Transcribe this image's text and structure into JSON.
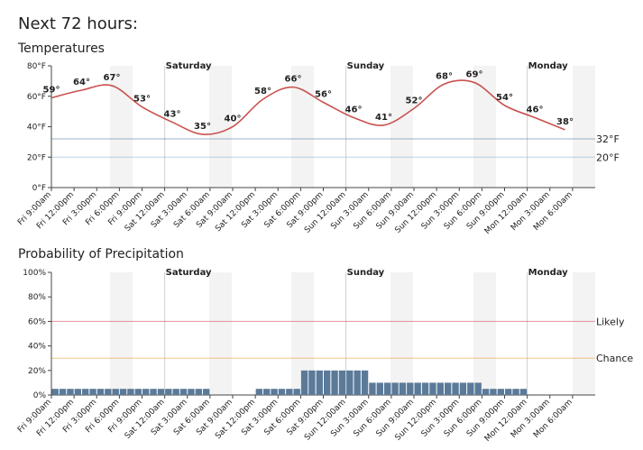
{
  "header": {
    "title": "Next 72 hours:"
  },
  "day_markers": [
    {
      "x": 15,
      "label": "Saturday"
    },
    {
      "x": 39,
      "label": "Sunday"
    },
    {
      "x": 63,
      "label": "Monday"
    }
  ],
  "chart_data": [
    {
      "type": "line",
      "title": "Temperatures",
      "color": "#c8524f",
      "x": [
        0,
        4,
        8,
        12,
        16,
        20,
        24,
        28,
        32,
        36,
        40,
        44,
        48,
        52,
        56,
        60,
        64,
        68
      ],
      "values": [
        59,
        64,
        67,
        53,
        43,
        35,
        40,
        58,
        66,
        56,
        46,
        41,
        52,
        68,
        69,
        54,
        46,
        38
      ],
      "value_labels": [
        "59°",
        "64°",
        "67°",
        "53°",
        "43°",
        "35°",
        "40°",
        "58°",
        "66°",
        "56°",
        "46°",
        "41°",
        "52°",
        "68°",
        "69°",
        "54°",
        "46°",
        "38°"
      ],
      "xlim": [
        0,
        72
      ],
      "xticks": [
        {
          "value": 0,
          "label": "Fri 9:00am"
        },
        {
          "value": 3,
          "label": "Fri 12:00pm"
        },
        {
          "value": 6,
          "label": "Fri 3:00pm"
        },
        {
          "value": 9,
          "label": "Fri 6:00pm"
        },
        {
          "value": 12,
          "label": "Fri 9:00pm"
        },
        {
          "value": 15,
          "label": "Sat 12:00am"
        },
        {
          "value": 18,
          "label": "Sat 3:00am"
        },
        {
          "value": 21,
          "label": "Sat 6:00am"
        },
        {
          "value": 24,
          "label": "Sat 9:00am"
        },
        {
          "value": 27,
          "label": "Sat 12:00pm"
        },
        {
          "value": 30,
          "label": "Sat 3:00pm"
        },
        {
          "value": 33,
          "label": "Sat 6:00pm"
        },
        {
          "value": 36,
          "label": "Sat 9:00pm"
        },
        {
          "value": 39,
          "label": "Sun 12:00am"
        },
        {
          "value": 42,
          "label": "Sun 3:00am"
        },
        {
          "value": 45,
          "label": "Sun 6:00am"
        },
        {
          "value": 48,
          "label": "Sun 9:00am"
        },
        {
          "value": 51,
          "label": "Sun 12:00pm"
        },
        {
          "value": 54,
          "label": "Sun 3:00pm"
        },
        {
          "value": 57,
          "label": "Sun 6:00pm"
        },
        {
          "value": 60,
          "label": "Sun 9:00pm"
        },
        {
          "value": 63,
          "label": "Mon 12:00am"
        },
        {
          "value": 66,
          "label": "Mon 3:00am"
        },
        {
          "value": 69,
          "label": "Mon 6:00am"
        }
      ],
      "ylim": [
        0,
        80
      ],
      "yticks": [
        {
          "value": 0,
          "label": "0°F"
        },
        {
          "value": 20,
          "label": "20°F"
        },
        {
          "value": 40,
          "label": "40°F"
        },
        {
          "value": 60,
          "label": "60°F"
        },
        {
          "value": 80,
          "label": "80°F"
        }
      ],
      "reference_lines": [
        {
          "value": 32,
          "label": "32°F",
          "color": "#5e7fa3"
        },
        {
          "value": 20,
          "label": "20°F",
          "color": "#8fb4d6"
        }
      ]
    },
    {
      "type": "bar",
      "title": "Probability of Precipitation",
      "color": "#5b7a99",
      "x": [
        0,
        1,
        2,
        3,
        4,
        5,
        6,
        7,
        8,
        9,
        10,
        11,
        12,
        13,
        14,
        15,
        16,
        17,
        18,
        19,
        20,
        21,
        22,
        23,
        24,
        25,
        26,
        27,
        28,
        29,
        30,
        31,
        32,
        33,
        34,
        35,
        36,
        37,
        38,
        39,
        40,
        41,
        42,
        43,
        44,
        45,
        46,
        47,
        48,
        49,
        50,
        51,
        52,
        53,
        54,
        55,
        56,
        57,
        58,
        59,
        60,
        61,
        62,
        63,
        64,
        65,
        66,
        67,
        68,
        69,
        70,
        71
      ],
      "values": [
        5,
        5,
        5,
        5,
        5,
        5,
        5,
        5,
        5,
        5,
        5,
        5,
        5,
        5,
        5,
        5,
        5,
        5,
        5,
        5,
        5,
        0,
        0,
        0,
        0,
        0,
        0,
        5,
        5,
        5,
        5,
        5,
        5,
        20,
        20,
        20,
        20,
        20,
        20,
        20,
        20,
        20,
        10,
        10,
        10,
        10,
        10,
        10,
        10,
        10,
        10,
        10,
        10,
        10,
        10,
        10,
        10,
        5,
        5,
        5,
        5,
        5,
        5,
        0,
        0,
        0,
        0,
        0,
        0,
        0,
        0,
        0
      ],
      "xlim": [
        0,
        72
      ],
      "xticks": [
        {
          "value": 0,
          "label": "Fri 9:00am"
        },
        {
          "value": 3,
          "label": "Fri 12:00pm"
        },
        {
          "value": 6,
          "label": "Fri 3:00pm"
        },
        {
          "value": 9,
          "label": "Fri 6:00pm"
        },
        {
          "value": 12,
          "label": "Fri 9:00pm"
        },
        {
          "value": 15,
          "label": "Sat 12:00am"
        },
        {
          "value": 18,
          "label": "Sat 3:00am"
        },
        {
          "value": 21,
          "label": "Sat 6:00am"
        },
        {
          "value": 24,
          "label": "Sat 9:00am"
        },
        {
          "value": 27,
          "label": "Sat 12:00pm"
        },
        {
          "value": 30,
          "label": "Sat 3:00pm"
        },
        {
          "value": 33,
          "label": "Sat 6:00pm"
        },
        {
          "value": 36,
          "label": "Sat 9:00pm"
        },
        {
          "value": 39,
          "label": "Sun 12:00am"
        },
        {
          "value": 42,
          "label": "Sun 3:00am"
        },
        {
          "value": 45,
          "label": "Sun 6:00am"
        },
        {
          "value": 48,
          "label": "Sun 9:00am"
        },
        {
          "value": 51,
          "label": "Sun 12:00pm"
        },
        {
          "value": 54,
          "label": "Sun 3:00pm"
        },
        {
          "value": 57,
          "label": "Sun 6:00pm"
        },
        {
          "value": 60,
          "label": "Sun 9:00pm"
        },
        {
          "value": 63,
          "label": "Mon 12:00am"
        },
        {
          "value": 66,
          "label": "Mon 3:00am"
        },
        {
          "value": 69,
          "label": "Mon 6:00am"
        }
      ],
      "ylim": [
        0,
        100
      ],
      "yticks": [
        {
          "value": 0,
          "label": "0%"
        },
        {
          "value": 20,
          "label": "20%"
        },
        {
          "value": 40,
          "label": "40%"
        },
        {
          "value": 60,
          "label": "60%"
        },
        {
          "value": 80,
          "label": "80%"
        },
        {
          "value": 100,
          "label": "100%"
        }
      ],
      "reference_lines": [
        {
          "value": 60,
          "label": "Likely",
          "color": "#d9485f"
        },
        {
          "value": 30,
          "label": "Chance",
          "color": "#e8a33d"
        }
      ]
    }
  ]
}
